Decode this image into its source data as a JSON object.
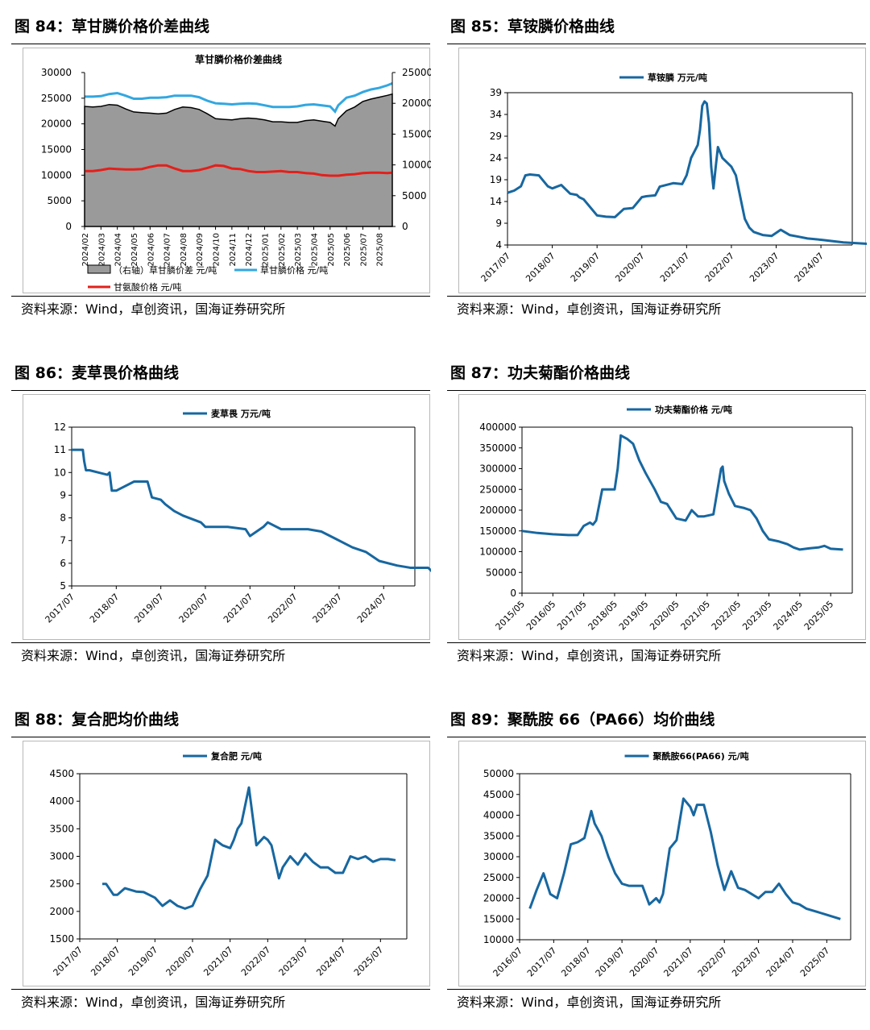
{
  "panels": [
    {
      "title": "图 84：草甘膦价格价差曲线",
      "source": "资料来源：Wind，卓创资讯，国海证券研究所",
      "chart_data": {
        "type": "area+line",
        "title": "草甘膦价格价差曲线",
        "x_ticks": [
          "2024/02",
          "2024/03",
          "2024/04",
          "2024/05",
          "2024/06",
          "2024/07",
          "2024/08",
          "2024/09",
          "2024/10",
          "2024/11",
          "2024/12",
          "2025/01",
          "2025/02",
          "2025/03",
          "2025/04",
          "2025/05",
          "2025/06",
          "2025/07",
          "2025/08"
        ],
        "y_left_ticks": [
          "30000",
          "25000",
          "20000",
          "15000",
          "10000",
          "5000",
          "0"
        ],
        "y_right_ticks": [
          "25000",
          "20000",
          "15000",
          "10000",
          "5000",
          "0"
        ],
        "ylim_left": [
          0,
          30000
        ],
        "ylim_right": [
          0,
          25000
        ],
        "legend": [
          "（右轴）草甘膦价差 元/吨",
          "草甘膦价格 元/吨",
          "甘氨酸价格 元/吨"
        ],
        "series": [
          {
            "name": "（右轴）草甘膦价差 元/吨",
            "axis": "right",
            "style": "area",
            "color": "#9a9a9a",
            "x": [
              0,
              0.5,
              1,
              1.5,
              2,
              2.5,
              3,
              3.5,
              4,
              4.5,
              5,
              5.5,
              6,
              6.5,
              7,
              7.5,
              8,
              8.5,
              9,
              9.5,
              10,
              10.5,
              11,
              11.5,
              12,
              12.5,
              13,
              13.5,
              14,
              14.5,
              15,
              15.3,
              15.5,
              16,
              16.5,
              17,
              17.5,
              18,
              18.5,
              18.8
            ],
            "values": [
              19500,
              19400,
              19500,
              19800,
              19700,
              19100,
              18600,
              18500,
              18400,
              18300,
              18400,
              19000,
              19400,
              19300,
              19000,
              18300,
              17500,
              17400,
              17300,
              17500,
              17600,
              17500,
              17300,
              17000,
              17000,
              16900,
              16900,
              17200,
              17300,
              17100,
              16900,
              16300,
              17500,
              18800,
              19400,
              20300,
              20700,
              21000,
              21300,
              21500
            ]
          },
          {
            "name": "草甘膦价格 元/吨",
            "axis": "left",
            "style": "line",
            "color": "#33a7e0",
            "x": [
              0,
              0.5,
              1,
              1.5,
              2,
              2.5,
              3,
              3.5,
              4,
              4.5,
              5,
              5.5,
              6,
              6.5,
              7,
              7.5,
              8,
              8.5,
              9,
              9.5,
              10,
              10.5,
              11,
              11.5,
              12,
              12.5,
              13,
              13.5,
              14,
              14.5,
              15,
              15.3,
              15.5,
              16,
              16.5,
              17,
              17.5,
              18,
              18.5,
              18.8
            ],
            "values": [
              25300,
              25300,
              25400,
              25800,
              26000,
              25500,
              24900,
              24900,
              25100,
              25100,
              25200,
              25500,
              25500,
              25500,
              25200,
              24500,
              24000,
              23900,
              23800,
              23900,
              24000,
              23900,
              23600,
              23300,
              23300,
              23300,
              23400,
              23700,
              23800,
              23600,
              23400,
              22400,
              23600,
              25100,
              25500,
              26200,
              26700,
              27000,
              27500,
              27900
            ]
          },
          {
            "name": "甘氨酸价格 元/吨",
            "axis": "left",
            "style": "line",
            "color": "#e3201b",
            "x": [
              0,
              0.5,
              1,
              1.5,
              2,
              2.5,
              3,
              3.5,
              4,
              4.5,
              5,
              5.5,
              6,
              6.5,
              7,
              7.5,
              8,
              8.5,
              9,
              9.5,
              10,
              10.5,
              11,
              11.5,
              12,
              12.5,
              13,
              13.5,
              14,
              14.5,
              15,
              15.5,
              16,
              16.5,
              17,
              17.5,
              18,
              18.5,
              18.8
            ],
            "values": [
              10800,
              10800,
              11000,
              11300,
              11200,
              11100,
              11100,
              11200,
              11600,
              11900,
              11900,
              11300,
              10800,
              10800,
              11000,
              11400,
              11900,
              11800,
              11300,
              11200,
              10800,
              10600,
              10600,
              10700,
              10800,
              10600,
              10600,
              10400,
              10300,
              10000,
              9900,
              9900,
              10100,
              10200,
              10400,
              10500,
              10500,
              10400,
              10500
            ]
          }
        ]
      }
    },
    {
      "title": "图 85：草铵膦价格曲线",
      "source": "资料来源：Wind，卓创资讯，国海证券研究所",
      "chart_data": {
        "type": "line",
        "legend": "草铵膦 万元/吨",
        "x_ticks": [
          "2017/07",
          "2018/07",
          "2019/07",
          "2020/07",
          "2021/07",
          "2022/07",
          "2023/07",
          "2024/07"
        ],
        "y_ticks": [
          "39",
          "34",
          "29",
          "24",
          "19",
          "14",
          "9",
          "4"
        ],
        "ylim": [
          4,
          39
        ],
        "series": [
          {
            "name": "草铵膦 万元/吨",
            "color": "#1767a0",
            "x": [
              0,
              0.15,
              0.3,
              0.4,
              0.5,
              0.7,
              0.9,
              1.0,
              1.2,
              1.4,
              1.55,
              1.6,
              1.7,
              2.0,
              2.2,
              2.4,
              2.6,
              2.8,
              3.0,
              3.1,
              3.3,
              3.4,
              3.7,
              3.9,
              4.0,
              4.1,
              4.2,
              4.25,
              4.3,
              4.35,
              4.4,
              4.45,
              4.5,
              4.55,
              4.6,
              4.65,
              4.7,
              4.8,
              4.9,
              5.0,
              5.1,
              5.2,
              5.3,
              5.4,
              5.5,
              5.7,
              5.9,
              6.1,
              6.3,
              6.5,
              6.7,
              7.0,
              7.5,
              8.0,
              8.2
            ],
            "values": [
              16,
              16.5,
              17.5,
              20,
              20.2,
              20,
              17.5,
              17,
              17.8,
              15.8,
              15.5,
              15,
              14.5,
              10.8,
              10.5,
              10.4,
              12.3,
              12.5,
              15,
              15.2,
              15.4,
              17.4,
              18.2,
              18,
              20,
              24,
              26,
              27,
              30.5,
              36,
              37,
              36.5,
              32,
              22,
              17,
              22,
              26.5,
              24,
              23,
              22,
              20,
              15,
              10,
              8,
              7,
              6.3,
              6.1,
              7.5,
              6.3,
              5.9,
              5.5,
              5.2,
              4.6,
              4.3,
              4.2
            ]
          }
        ]
      }
    },
    {
      "title": "图 86：麦草畏价格曲线",
      "source": "资料来源：Wind，卓创资讯，国海证券研究所",
      "chart_data": {
        "type": "line",
        "legend": "麦草畏 万元/吨",
        "x_ticks": [
          "2017/07",
          "2018/07",
          "2019/07",
          "2020/07",
          "2021/07",
          "2022/07",
          "2023/07",
          "2024/07"
        ],
        "y_ticks": [
          "12",
          "11",
          "10",
          "9",
          "8",
          "7",
          "6",
          "5"
        ],
        "ylim": [
          5,
          12
        ],
        "series": [
          {
            "name": "麦草畏 万元/吨",
            "color": "#1767a0",
            "x": [
              0,
              0.25,
              0.28,
              0.32,
              0.4,
              0.8,
              0.85,
              0.9,
              1.0,
              1.4,
              1.7,
              1.8,
              2.0,
              2.1,
              2.3,
              2.5,
              2.9,
              3.0,
              3.5,
              3.9,
              4.0,
              4.3,
              4.4,
              4.7,
              5.0,
              5.3,
              5.6,
              5.9,
              6.3,
              6.6,
              6.9,
              7.3,
              7.6,
              8.0,
              8.2
            ],
            "values": [
              11,
              11,
              10.5,
              10.1,
              10.1,
              9.9,
              10,
              9.2,
              9.2,
              9.6,
              9.6,
              8.9,
              8.8,
              8.6,
              8.3,
              8.1,
              7.8,
              7.6,
              7.6,
              7.5,
              7.2,
              7.6,
              7.8,
              7.5,
              7.5,
              7.5,
              7.4,
              7.1,
              6.7,
              6.5,
              6.1,
              5.9,
              5.8,
              5.8,
              5.4
            ]
          }
        ]
      }
    },
    {
      "title": "图 87：功夫菊酯价格曲线",
      "source": "资料来源：Wind，卓创资讯，国海证券研究所",
      "chart_data": {
        "type": "line",
        "legend": "功夫菊酯价格 元/吨",
        "x_ticks": [
          "2015/05",
          "2016/05",
          "2017/05",
          "2018/05",
          "2019/05",
          "2020/05",
          "2021/05",
          "2022/05",
          "2023/05",
          "2024/05",
          "2025/05"
        ],
        "y_ticks": [
          "400000",
          "350000",
          "300000",
          "250000",
          "200000",
          "150000",
          "100000",
          "50000",
          "0"
        ],
        "ylim": [
          0,
          400000
        ],
        "series": [
          {
            "name": "功夫菊酯价格 元/吨",
            "color": "#1767a0",
            "x": [
              0,
              0.5,
              1,
              1.5,
              1.8,
              2.0,
              2.2,
              2.3,
              2.4,
              2.6,
              3.0,
              3.1,
              3.2,
              3.4,
              3.6,
              3.8,
              4.0,
              4.3,
              4.5,
              4.7,
              5.0,
              5.3,
              5.5,
              5.7,
              5.9,
              6.2,
              6.45,
              6.5,
              6.55,
              6.7,
              6.9,
              7.2,
              7.4,
              7.6,
              7.8,
              8.0,
              8.3,
              8.6,
              8.8,
              9.0,
              9.3,
              9.6,
              9.8,
              10.0,
              10.2,
              10.4
            ],
            "values": [
              150000,
              145000,
              142000,
              140000,
              140000,
              162000,
              170000,
              165000,
              175000,
              250000,
              250000,
              300000,
              380000,
              372000,
              360000,
              320000,
              290000,
              250000,
              220000,
              215000,
              180000,
              175000,
              200000,
              185000,
              185000,
              190000,
              300000,
              305000,
              270000,
              240000,
              210000,
              205000,
              200000,
              180000,
              150000,
              130000,
              125000,
              118000,
              110000,
              105000,
              108000,
              110000,
              114000,
              107000,
              106000,
              105000
            ]
          }
        ]
      }
    },
    {
      "title": "图 88：复合肥均价曲线",
      "source": "资料来源：Wind，卓创资讯，国海证券研究所",
      "chart_data": {
        "type": "line",
        "legend": "复合肥 元/吨",
        "x_ticks": [
          "2017/07",
          "2018/07",
          "2019/07",
          "2020/07",
          "2021/07",
          "2022/07",
          "2023/07",
          "2024/07",
          "2025/07"
        ],
        "y_ticks": [
          "4500",
          "4000",
          "3500",
          "3000",
          "2500",
          "2000",
          "1500"
        ],
        "ylim": [
          1500,
          4500
        ],
        "series": [
          {
            "name": "复合肥 元/吨",
            "color": "#1767a0",
            "x": [
              0.6,
              0.7,
              0.9,
              1.0,
              1.2,
              1.5,
              1.7,
              2.0,
              2.2,
              2.4,
              2.6,
              2.8,
              3.0,
              3.2,
              3.4,
              3.6,
              3.8,
              4.0,
              4.1,
              4.2,
              4.3,
              4.5,
              4.7,
              4.9,
              5.0,
              5.1,
              5.2,
              5.3,
              5.4,
              5.6,
              5.8,
              6.0,
              6.2,
              6.4,
              6.6,
              6.8,
              7.0,
              7.2,
              7.4,
              7.6,
              7.8,
              8.0,
              8.2,
              8.4
            ],
            "values": [
              2500,
              2500,
              2300,
              2300,
              2420,
              2360,
              2350,
              2250,
              2100,
              2200,
              2100,
              2050,
              2100,
              2400,
              2650,
              3300,
              3200,
              3150,
              3300,
              3500,
              3600,
              4250,
              3200,
              3350,
              3300,
              3200,
              2900,
              2600,
              2800,
              3000,
              2850,
              3050,
              2900,
              2800,
              2800,
              2700,
              2700,
              3000,
              2950,
              3000,
              2900,
              2950,
              2950,
              2930
            ]
          }
        ]
      }
    },
    {
      "title": "图 89：聚酰胺 66（PA66）均价曲线",
      "source": "资料来源：Wind，卓创资讯，国海证券研究所",
      "chart_data": {
        "type": "line",
        "legend": "聚酰胺66(PA66) 元/吨",
        "x_ticks": [
          "2016/07",
          "2017/07",
          "2018/07",
          "2019/07",
          "2020/07",
          "2021/07",
          "2022/07",
          "2023/07",
          "2024/07",
          "2025/07"
        ],
        "y_ticks": [
          "50000",
          "45000",
          "40000",
          "35000",
          "30000",
          "25000",
          "20000",
          "15000",
          "10000"
        ],
        "ylim": [
          10000,
          50000
        ],
        "series": [
          {
            "name": "聚酰胺66(PA66) 元/吨",
            "color": "#1767a0",
            "x": [
              0.3,
              0.5,
              0.7,
              0.9,
              1.1,
              1.3,
              1.5,
              1.7,
              1.9,
              2.1,
              2.2,
              2.4,
              2.6,
              2.8,
              3.0,
              3.2,
              3.4,
              3.6,
              3.8,
              4.0,
              4.1,
              4.2,
              4.4,
              4.6,
              4.8,
              5.0,
              5.1,
              5.2,
              5.4,
              5.6,
              5.8,
              6.0,
              6.2,
              6.4,
              6.6,
              6.8,
              7.0,
              7.2,
              7.4,
              7.6,
              7.8,
              8.0,
              8.2,
              8.4,
              8.6,
              8.8,
              9.0,
              9.2,
              9.4
            ],
            "values": [
              17500,
              22000,
              26000,
              21000,
              20000,
              26000,
              33000,
              33500,
              34500,
              41000,
              38000,
              35000,
              30000,
              26000,
              23500,
              23000,
              23000,
              23000,
              18500,
              20000,
              19000,
              21000,
              32000,
              34000,
              44000,
              42000,
              40000,
              42500,
              42500,
              36000,
              28000,
              22000,
              26500,
              22500,
              22000,
              21000,
              20000,
              21500,
              21500,
              23500,
              21000,
              19000,
              18500,
              17500,
              17000,
              16500,
              16000,
              15500,
              15000
            ]
          }
        ]
      }
    }
  ]
}
